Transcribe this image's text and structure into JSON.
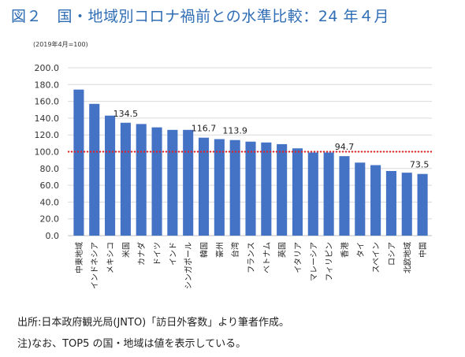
{
  "header": {
    "title": "図２　国・地域別コロナ禍前との水準比較：24 年４月",
    "base_note": "(2019年4月=100)"
  },
  "notes": {
    "source": "出所:日本政府観光局(JNTO)「訪日外客数」より筆者作成。",
    "remark": "注)なお、TOP5 の国・地域は値を表示している。"
  },
  "colors": {
    "bar": "#4472c4",
    "reference_line": "#e02020",
    "grid": "#d9d9d9",
    "title": "#2f6db5"
  },
  "chart_data": {
    "type": "bar",
    "title": "図２　国・地域別コロナ禍前との水準比較：24 年４月",
    "xlabel": "",
    "ylabel": "",
    "ylim": [
      0,
      200
    ],
    "yticks": [
      "0.0",
      "20.0",
      "40.0",
      "60.0",
      "80.0",
      "100.0",
      "120.0",
      "140.0",
      "160.0",
      "180.0",
      "200.0"
    ],
    "grid": true,
    "reference_line": 100,
    "categories": [
      "中東地域",
      "インドネシア",
      "メキシコ",
      "米国",
      "カナダ",
      "ドイツ",
      "インド",
      "シンガポール",
      "韓国",
      "豪州",
      "台湾",
      "フランス",
      "ベトナム",
      "英国",
      "イタリア",
      "マレーシア",
      "フィリピン",
      "香港",
      "タイ",
      "スペイン",
      "ロシア",
      "北欧地域",
      "中国"
    ],
    "values": [
      174,
      157,
      143,
      134.5,
      133,
      129,
      126,
      126,
      116.7,
      115,
      113.9,
      112,
      111,
      109,
      104,
      99,
      99,
      94.7,
      87,
      84,
      77,
      75,
      73.5
    ],
    "data_labels": [
      {
        "category": "米国",
        "text": "134.5"
      },
      {
        "category": "韓国",
        "text": "116.7"
      },
      {
        "category": "台湾",
        "text": "113.9"
      },
      {
        "category": "香港",
        "text": "94.7"
      },
      {
        "category": "中国",
        "text": "73.5"
      }
    ]
  }
}
